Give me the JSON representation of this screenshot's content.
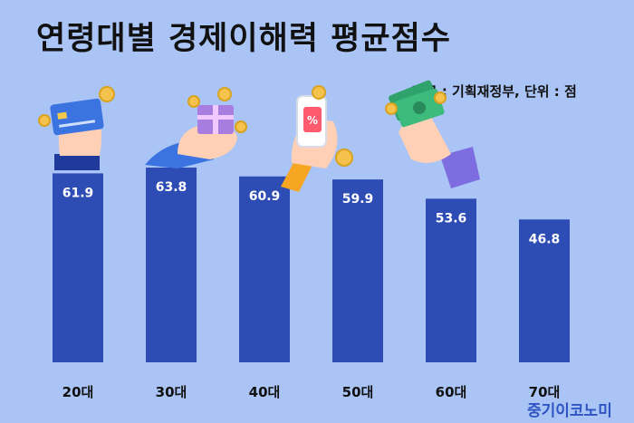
{
  "chart_data": {
    "type": "bar",
    "title": "연령대별 경제이해력 평균점수",
    "source_note": "자료 : 기획재정부, 단위 : 점",
    "categories": [
      "20대",
      "30대",
      "40대",
      "50대",
      "60대",
      "70대"
    ],
    "values": [
      61.9,
      63.8,
      60.9,
      59.9,
      53.6,
      46.8
    ],
    "value_labels": [
      "61.9",
      "63.8",
      "60.9",
      "59.9",
      "53.6",
      "46.8"
    ],
    "xlabel": "",
    "ylabel": "",
    "ylim": [
      0,
      65
    ],
    "grid": false,
    "bar_color": "#2d4db5",
    "background_color": "#a9c4f5"
  },
  "watermark": "중기이코노미",
  "icons": [
    "credit-card-hand-icon",
    "gift-box-hand-icon",
    "phone-sale-hand-icon",
    "cash-hand-icon",
    "coin-icon"
  ]
}
